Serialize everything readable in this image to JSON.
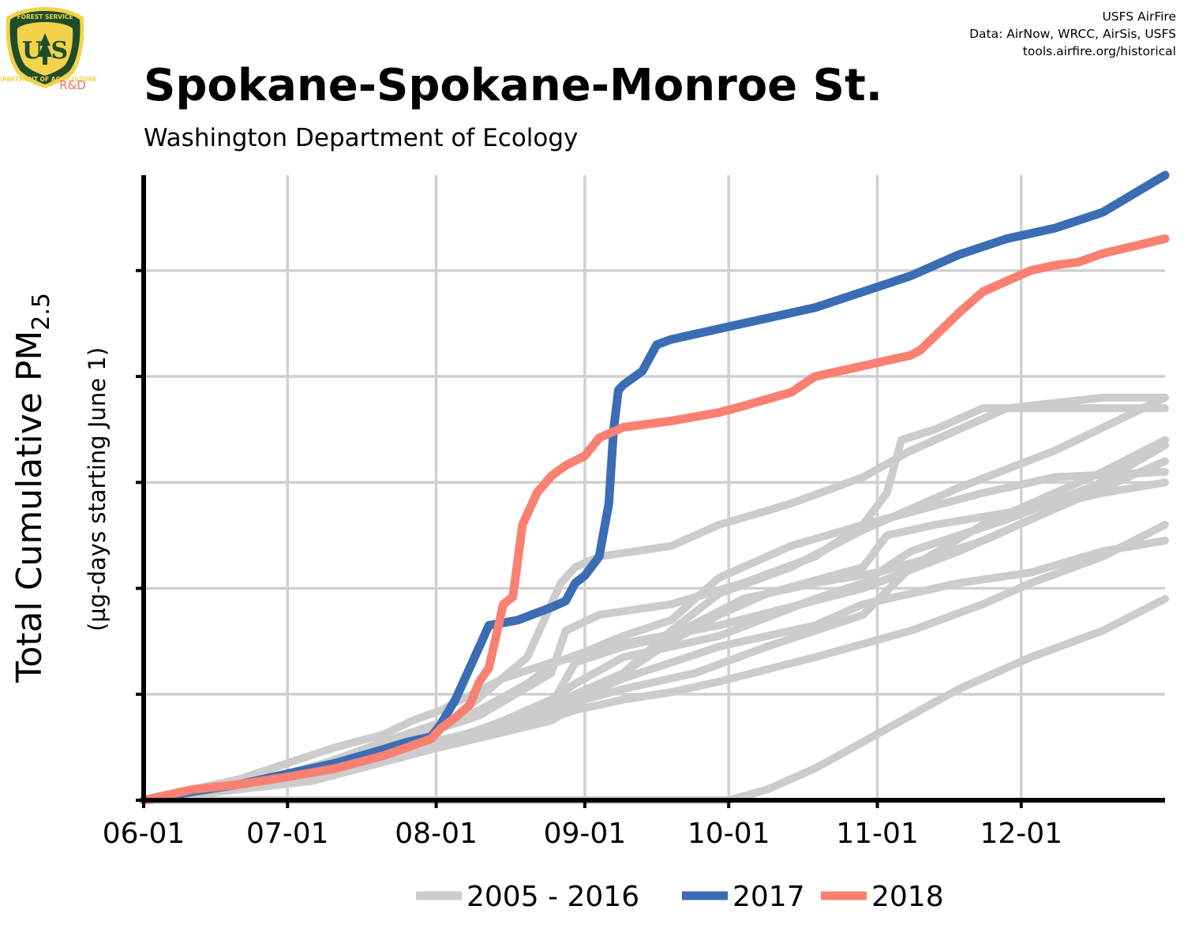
{
  "logo": {
    "top_text": "FOREST SERVICE",
    "letters": "U S",
    "bottom_text": "DEPARTMENT OF AGRICULTURE",
    "rd": "R&D",
    "colors": {
      "shield": "#1f4d2b",
      "gold": "#f2d34a",
      "rd": "#e8735a"
    }
  },
  "credits": [
    "USFS AirFire",
    "Data: AirNow, WRCC, AirSis, USFS",
    "tools.airfire.org/historical"
  ],
  "title": "Spokane-Spokane-Monroe St.",
  "subtitle": "Washington Department of Ecology",
  "chart_data": {
    "type": "line",
    "xlabel": "",
    "ylabel_main": "Total Cumulative PM",
    "ylabel_sub": "2.5",
    "ylabel_secondary": "(µg-days starting June 1)",
    "x_ticks": [
      "06-01",
      "07-01",
      "08-01",
      "09-01",
      "10-01",
      "11-01",
      "12-01"
    ],
    "x_tick_days": [
      0,
      30,
      61,
      92,
      122,
      153,
      183
    ],
    "xlim_days": [
      0,
      213
    ],
    "ylim": [
      0,
      5.9
    ],
    "y_ticks_unlabeled": [
      0,
      1,
      2,
      3,
      4,
      5
    ],
    "y_tick_labels": "none",
    "grid": true,
    "legend_position": "bottom",
    "colors": {
      "2005 - 2016": "#cccccc",
      "2017": "#3a6db3",
      "2018": "#fa8072"
    },
    "x_unit": "days since June 1",
    "series": [
      {
        "name": "2005 - 2016",
        "group": "history",
        "x": [
          0,
          20,
          40,
          50,
          56,
          62,
          75,
          85,
          90,
          100,
          120,
          150,
          170,
          190,
          213
        ],
        "y": [
          0,
          0.2,
          0.5,
          0.62,
          0.75,
          0.85,
          1.15,
          1.3,
          1.35,
          1.48,
          1.65,
          2.0,
          2.35,
          2.75,
          3.2
        ]
      },
      {
        "x": [
          0,
          25,
          45,
          60,
          70,
          85,
          88,
          95,
          110,
          125,
          140,
          150,
          155,
          158,
          165,
          175,
          185,
          200,
          213
        ],
        "y": [
          0,
          0.18,
          0.45,
          0.65,
          0.8,
          1.2,
          1.6,
          1.75,
          1.85,
          2.05,
          2.3,
          2.6,
          2.9,
          3.4,
          3.5,
          3.7,
          3.7,
          3.7,
          3.7
        ]
      },
      {
        "x": [
          0,
          30,
          50,
          65,
          75,
          85,
          92,
          100,
          115,
          130,
          150,
          160,
          175,
          200,
          213
        ],
        "y": [
          0,
          0.2,
          0.45,
          0.6,
          0.72,
          0.85,
          0.95,
          1.05,
          1.2,
          1.45,
          1.75,
          2.2,
          2.6,
          3.1,
          3.4
        ]
      },
      {
        "x": [
          0,
          30,
          50,
          62,
          70,
          80,
          86,
          92,
          100,
          110,
          120,
          135,
          150,
          175,
          190,
          213
        ],
        "y": [
          0,
          0.22,
          0.52,
          0.7,
          0.85,
          1.1,
          1.3,
          1.4,
          1.55,
          1.7,
          2.1,
          2.4,
          2.6,
          2.9,
          3.05,
          3.1
        ]
      },
      {
        "x": [
          0,
          30,
          55,
          70,
          85,
          90,
          100,
          110,
          125,
          140,
          153,
          165,
          175,
          190,
          213
        ],
        "y": [
          0,
          0.2,
          0.45,
          0.62,
          0.9,
          1.3,
          1.45,
          1.55,
          1.9,
          2.05,
          2.15,
          2.3,
          2.45,
          2.75,
          3.35
        ]
      },
      {
        "x": [
          0,
          30,
          60,
          75,
          85,
          90,
          100,
          110,
          120,
          140,
          150,
          160,
          180,
          200,
          213
        ],
        "y": [
          0,
          0.2,
          0.5,
          0.75,
          0.95,
          1.1,
          1.35,
          1.45,
          1.55,
          1.9,
          2.05,
          2.35,
          2.65,
          3.0,
          3.4
        ]
      },
      {
        "x": [
          0,
          35,
          60,
          85,
          92,
          100,
          110,
          120,
          130,
          150,
          155,
          165,
          185,
          200,
          213
        ],
        "y": [
          0,
          0.18,
          0.48,
          0.75,
          0.95,
          1.2,
          1.5,
          1.75,
          1.95,
          2.2,
          2.5,
          2.6,
          2.75,
          2.9,
          3.0
        ]
      },
      {
        "x": [
          0,
          30,
          50,
          65,
          80,
          87,
          90,
          95,
          110,
          120,
          135,
          150,
          160,
          180,
          200,
          213
        ],
        "y": [
          0,
          0.22,
          0.55,
          0.78,
          1.35,
          2.05,
          2.2,
          2.3,
          2.4,
          2.6,
          2.8,
          3.05,
          3.3,
          3.7,
          3.8,
          3.8
        ]
      },
      {
        "x": [
          0,
          40,
          60,
          80,
          90,
          100,
          110,
          120,
          140,
          160,
          175,
          185,
          200,
          213
        ],
        "y": [
          0,
          0.3,
          0.55,
          0.7,
          0.85,
          0.95,
          1.02,
          1.12,
          1.35,
          1.6,
          1.85,
          2.05,
          2.3,
          2.6
        ]
      },
      {
        "x": [
          0,
          40,
          60,
          80,
          90,
          100,
          120,
          140,
          150,
          160,
          170,
          185,
          200,
          213
        ],
        "y": [
          0,
          0.3,
          0.55,
          0.75,
          0.95,
          1.15,
          1.45,
          1.65,
          1.85,
          1.95,
          2.05,
          2.15,
          2.35,
          2.45
        ]
      },
      {
        "x": [
          0,
          60,
          90,
          120,
          122,
          130,
          140,
          150,
          160,
          170,
          185,
          200,
          213
        ],
        "y": [
          0,
          0,
          0,
          0,
          0,
          0.1,
          0.3,
          0.55,
          0.8,
          1.05,
          1.35,
          1.6,
          1.9
        ]
      },
      {
        "x": [
          0,
          25,
          50,
          62,
          75,
          90,
          100,
          110,
          120,
          135,
          150,
          170,
          190,
          213
        ],
        "y": [
          0,
          0.15,
          0.4,
          0.55,
          0.7,
          1.0,
          1.2,
          1.6,
          1.95,
          2.2,
          2.55,
          2.95,
          3.3,
          3.8
        ]
      },
      {
        "name": "2017",
        "group": "2017",
        "x": [
          0,
          10,
          20,
          30,
          40,
          50,
          55,
          60,
          62,
          65,
          70,
          72,
          78,
          85,
          88,
          90,
          92,
          95,
          97,
          98,
          99,
          100,
          104,
          107,
          110,
          115,
          120,
          125,
          130,
          140,
          150,
          160,
          170,
          180,
          190,
          200,
          213
        ],
        "y": [
          0,
          0.08,
          0.15,
          0.25,
          0.35,
          0.48,
          0.55,
          0.6,
          0.72,
          0.95,
          1.45,
          1.65,
          1.7,
          1.82,
          1.88,
          2.05,
          2.12,
          2.3,
          2.8,
          3.5,
          3.87,
          3.92,
          4.05,
          4.3,
          4.35,
          4.4,
          4.45,
          4.5,
          4.55,
          4.65,
          4.8,
          4.95,
          5.15,
          5.3,
          5.4,
          5.55,
          5.9
        ]
      },
      {
        "name": "2018",
        "group": "2018",
        "x": [
          0,
          10,
          20,
          30,
          40,
          50,
          55,
          60,
          62,
          65,
          68,
          70,
          72,
          75,
          77,
          79,
          82,
          85,
          88,
          92,
          95,
          100,
          110,
          120,
          125,
          135,
          140,
          150,
          160,
          162,
          170,
          175,
          180,
          185,
          190,
          195,
          200,
          213
        ],
        "y": [
          0,
          0.1,
          0.15,
          0.22,
          0.3,
          0.42,
          0.5,
          0.58,
          0.68,
          0.78,
          0.9,
          1.12,
          1.25,
          1.85,
          1.92,
          2.6,
          2.9,
          3.06,
          3.16,
          3.25,
          3.42,
          3.52,
          3.58,
          3.66,
          3.72,
          3.85,
          4.0,
          4.1,
          4.2,
          4.25,
          4.6,
          4.8,
          4.9,
          5.0,
          5.05,
          5.08,
          5.16,
          5.3
        ]
      }
    ]
  },
  "legend": {
    "items": [
      {
        "label": "2005 - 2016",
        "color": "#cccccc"
      },
      {
        "label": "2017",
        "color": "#3a6db3"
      },
      {
        "label": "2018",
        "color": "#fa8072"
      }
    ]
  }
}
